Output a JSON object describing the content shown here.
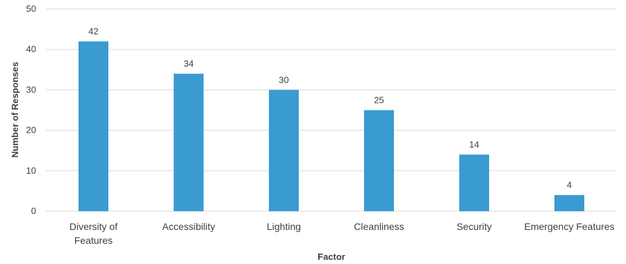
{
  "chart_data": {
    "type": "bar",
    "categories": [
      [
        "Diversity of",
        "Features"
      ],
      [
        "Accessibility"
      ],
      [
        "Lighting"
      ],
      [
        "Cleanliness"
      ],
      [
        "Security"
      ],
      [
        "Emergency Features"
      ]
    ],
    "values": [
      42,
      34,
      30,
      25,
      14,
      4
    ],
    "data_labels": [
      "42",
      "34",
      "30",
      "25",
      "14",
      "4"
    ],
    "yticks": [
      "0",
      "10",
      "20",
      "30",
      "40",
      "50"
    ],
    "xlabel": "Factor",
    "ylabel": "Number of Responses",
    "ylim": [
      0,
      50
    ],
    "grid": true,
    "bar_color": "#3a9bd0",
    "grid_color": "#d9d9d9",
    "text_color": "#404040"
  }
}
